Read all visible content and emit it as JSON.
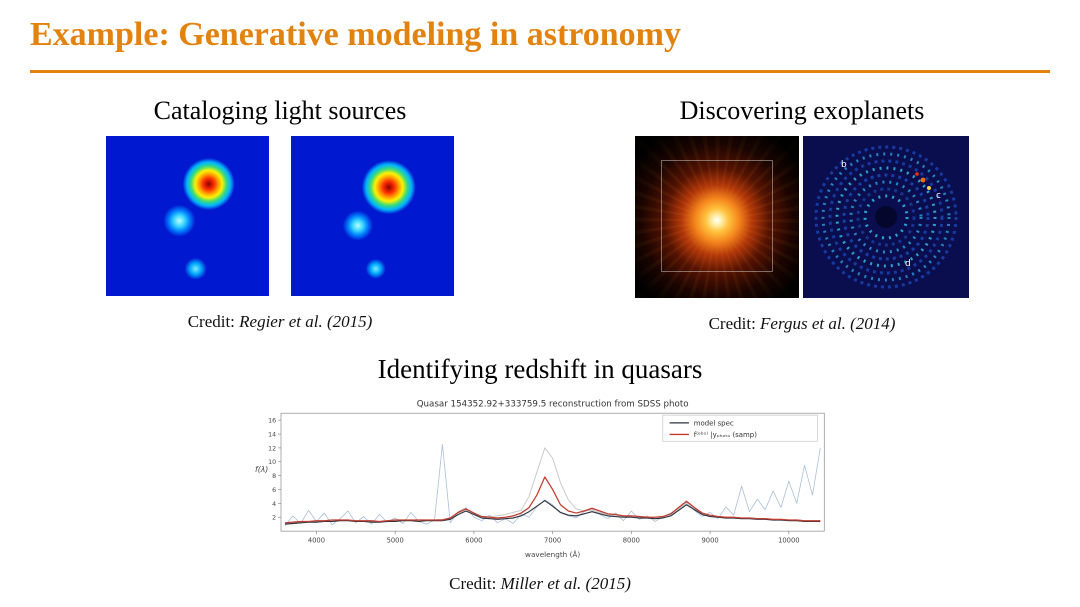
{
  "slide": {
    "title": "Example: Generative modeling in astronomy",
    "accent_color": "#e2830f",
    "background_color": "#ffffff"
  },
  "panels": {
    "light_sources": {
      "heading": "Cataloging light sources",
      "credit_label": "Credit:",
      "credit_ref": "Regier et al. (2015)"
    },
    "exoplanets": {
      "heading": "Discovering exoplanets",
      "credit_label": "Credit:",
      "credit_ref": "Fergus et al. (2014)",
      "markers": [
        "b",
        "c",
        "d"
      ]
    },
    "quasars": {
      "heading": "Identifying redshift in quasars",
      "credit_label": "Credit:",
      "credit_ref": "Miller et al. (2015)"
    }
  },
  "chart_data": {
    "type": "line",
    "title": "Quasar 154352.92+333759.5 reconstruction from SDSS photo",
    "xlabel": "wavelength (Å)",
    "ylabel": "f(λ)",
    "xlim": [
      3550,
      10450
    ],
    "ylim": [
      0,
      17
    ],
    "x_ticks": [
      4000,
      5000,
      6000,
      7000,
      8000,
      9000,
      10000
    ],
    "y_ticks": [
      2,
      4,
      6,
      8,
      10,
      12,
      14,
      16
    ],
    "grid": false,
    "legend_position": "upper right",
    "legend": [
      {
        "label": "model spec",
        "color": "#2e3440"
      },
      {
        "label": "f⁽ᵒᵇˢ⁾ |yₚₕₒₜₒ (samp)",
        "color": "#c23b2e"
      }
    ],
    "x_start": 3600,
    "x_step": 100,
    "series": [
      {
        "name": "noisy spectrum (light blue)",
        "color": "#a9bed8",
        "width": 0.8,
        "values": [
          0.8,
          2.2,
          1.1,
          3.0,
          1.4,
          2.6,
          0.9,
          1.8,
          2.9,
          1.2,
          2.1,
          1.0,
          2.4,
          1.3,
          1.9,
          1.1,
          2.7,
          1.4,
          1.0,
          1.6,
          12.5,
          1.2,
          2.8,
          3.4,
          2.0,
          1.5,
          2.3,
          1.2,
          1.8,
          1.1,
          2.5,
          2.0,
          3.5,
          4.5,
          3.8,
          2.6,
          2.2,
          1.9,
          2.8,
          3.2,
          2.4,
          1.8,
          2.6,
          1.5,
          2.9,
          1.7,
          2.2,
          1.4,
          2.0,
          2.6,
          3.3,
          4.2,
          3.0,
          2.1,
          2.7,
          1.8,
          3.5,
          2.3,
          6.5,
          2.8,
          4.6,
          3.1,
          5.8,
          3.4,
          7.2,
          4.0,
          9.5,
          5.2,
          12.0
        ]
      },
      {
        "name": "sample curve (light gray)",
        "color": "#c9c9c9",
        "width": 1.0,
        "values": [
          1.1,
          1.2,
          1.2,
          1.3,
          1.3,
          1.4,
          1.4,
          1.5,
          1.5,
          1.4,
          1.4,
          1.4,
          1.3,
          1.4,
          1.5,
          1.5,
          1.5,
          1.5,
          1.6,
          1.6,
          1.7,
          1.9,
          2.6,
          3.1,
          2.5,
          2.1,
          2.1,
          2.2,
          2.4,
          2.7,
          3.0,
          5.0,
          8.5,
          12.0,
          10.5,
          7.0,
          4.5,
          3.2,
          2.9,
          3.0,
          2.7,
          2.4,
          2.3,
          2.2,
          2.2,
          2.1,
          2.0,
          2.0,
          2.1,
          2.4,
          3.2,
          4.0,
          3.3,
          2.5,
          2.2,
          2.1,
          2.0,
          2.0,
          1.9,
          1.9,
          1.8,
          1.8,
          1.7,
          1.7,
          1.6,
          1.6,
          1.5,
          1.5,
          1.5
        ]
      },
      {
        "name": "model spec",
        "color": "#2e3440",
        "width": 1.2,
        "values": [
          1.0,
          1.1,
          1.2,
          1.3,
          1.3,
          1.4,
          1.4,
          1.5,
          1.5,
          1.4,
          1.4,
          1.3,
          1.3,
          1.4,
          1.4,
          1.5,
          1.5,
          1.4,
          1.5,
          1.5,
          1.5,
          1.7,
          2.4,
          2.9,
          2.4,
          1.9,
          1.8,
          1.7,
          1.8,
          1.9,
          2.2,
          2.8,
          3.6,
          4.4,
          3.6,
          2.7,
          2.3,
          2.2,
          2.5,
          2.8,
          2.5,
          2.2,
          2.1,
          2.0,
          2.0,
          1.9,
          1.9,
          1.8,
          1.9,
          2.2,
          3.0,
          3.8,
          3.1,
          2.4,
          2.1,
          2.0,
          1.9,
          1.9,
          1.8,
          1.8,
          1.7,
          1.7,
          1.6,
          1.6,
          1.5,
          1.5,
          1.4,
          1.4,
          1.4
        ]
      },
      {
        "name": "f^(obs)|y_photo (samp)",
        "color": "#c23b2e",
        "width": 1.3,
        "values": [
          1.2,
          1.3,
          1.4,
          1.4,
          1.5,
          1.5,
          1.6,
          1.6,
          1.6,
          1.5,
          1.5,
          1.5,
          1.4,
          1.5,
          1.6,
          1.6,
          1.6,
          1.6,
          1.6,
          1.6,
          1.6,
          1.9,
          2.7,
          3.2,
          2.6,
          2.1,
          2.0,
          1.9,
          2.0,
          2.2,
          2.6,
          3.4,
          5.2,
          7.8,
          6.0,
          3.8,
          2.9,
          2.6,
          2.9,
          3.3,
          2.9,
          2.5,
          2.4,
          2.2,
          2.2,
          2.1,
          2.0,
          2.0,
          2.1,
          2.5,
          3.4,
          4.3,
          3.4,
          2.6,
          2.3,
          2.1,
          2.0,
          2.0,
          1.9,
          1.9,
          1.8,
          1.8,
          1.7,
          1.7,
          1.6,
          1.6,
          1.5,
          1.5,
          1.5
        ]
      }
    ]
  }
}
